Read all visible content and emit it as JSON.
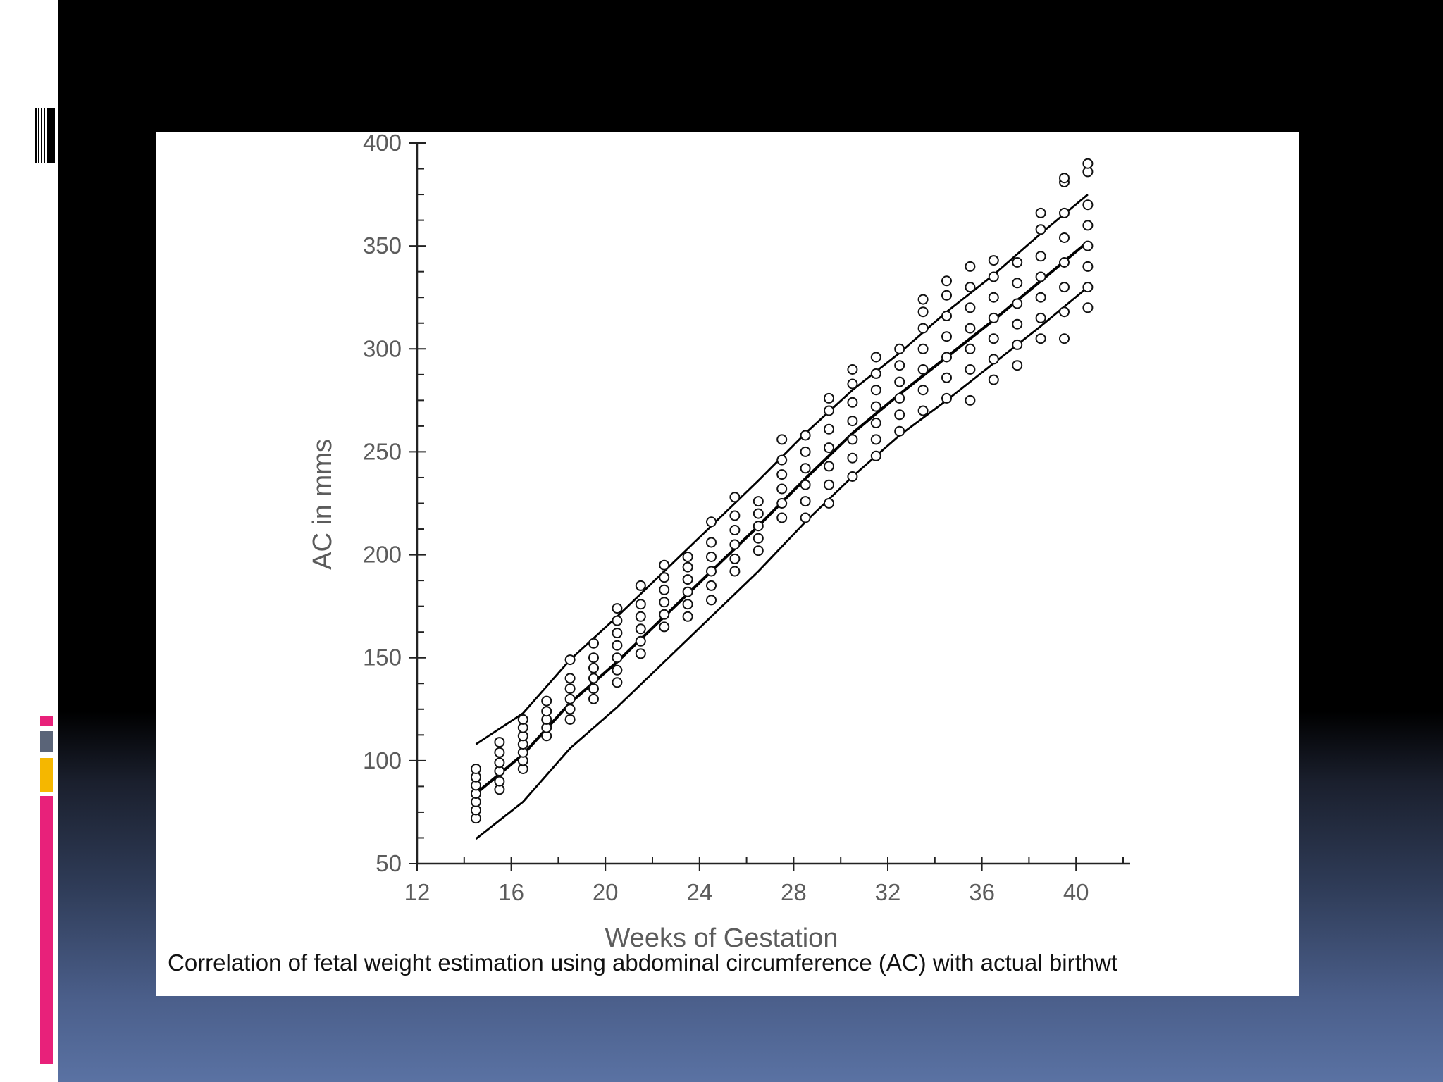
{
  "caption": "Correlation of fetal weight estimation using abdominal circumference (AC) with actual birthwt",
  "colors": {
    "slide_top": "#000000",
    "slide_bottom": "#5a72a3",
    "accent_pink": "#e8217a",
    "accent_slate": "#5a6478",
    "accent_amber": "#f5b700",
    "ink": "#000000"
  },
  "chart_data": {
    "type": "scatter",
    "title": "",
    "xlabel": "Weeks of Gestation",
    "ylabel": "AC in mms",
    "xlim": [
      12,
      42
    ],
    "ylim": [
      50,
      400
    ],
    "xticks": [
      "12",
      "16",
      "20",
      "24",
      "28",
      "32",
      "36",
      "40"
    ],
    "yticks": [
      "50",
      "100",
      "150",
      "200",
      "250",
      "300",
      "350",
      "400"
    ],
    "grid": false,
    "legend": "none",
    "series": [
      {
        "kind": "points",
        "marker": "open-circle",
        "points": [
          [
            14.5,
            72
          ],
          [
            14.5,
            76
          ],
          [
            14.5,
            80
          ],
          [
            14.5,
            84
          ],
          [
            14.5,
            88
          ],
          [
            14.5,
            92
          ],
          [
            14.5,
            96
          ],
          [
            15.5,
            86
          ],
          [
            15.5,
            90
          ],
          [
            15.5,
            95
          ],
          [
            15.5,
            99
          ],
          [
            15.5,
            104
          ],
          [
            15.5,
            109
          ],
          [
            16.5,
            96
          ],
          [
            16.5,
            100
          ],
          [
            16.5,
            104
          ],
          [
            16.5,
            108
          ],
          [
            16.5,
            112
          ],
          [
            16.5,
            116
          ],
          [
            16.5,
            120
          ],
          [
            17.5,
            112
          ],
          [
            17.5,
            116
          ],
          [
            17.5,
            120
          ],
          [
            17.5,
            124
          ],
          [
            17.5,
            129
          ],
          [
            18.5,
            120
          ],
          [
            18.5,
            125
          ],
          [
            18.5,
            130
          ],
          [
            18.5,
            135
          ],
          [
            18.5,
            140
          ],
          [
            18.5,
            149
          ],
          [
            19.5,
            130
          ],
          [
            19.5,
            135
          ],
          [
            19.5,
            140
          ],
          [
            19.5,
            145
          ],
          [
            19.5,
            150
          ],
          [
            19.5,
            157
          ],
          [
            20.5,
            138
          ],
          [
            20.5,
            144
          ],
          [
            20.5,
            150
          ],
          [
            20.5,
            156
          ],
          [
            20.5,
            162
          ],
          [
            20.5,
            168
          ],
          [
            20.5,
            174
          ],
          [
            21.5,
            152
          ],
          [
            21.5,
            158
          ],
          [
            21.5,
            164
          ],
          [
            21.5,
            170
          ],
          [
            21.5,
            176
          ],
          [
            21.5,
            185
          ],
          [
            22.5,
            165
          ],
          [
            22.5,
            171
          ],
          [
            22.5,
            177
          ],
          [
            22.5,
            183
          ],
          [
            22.5,
            189
          ],
          [
            22.5,
            195
          ],
          [
            23.5,
            170
          ],
          [
            23.5,
            176
          ],
          [
            23.5,
            182
          ],
          [
            23.5,
            188
          ],
          [
            23.5,
            194
          ],
          [
            23.5,
            199
          ],
          [
            24.5,
            178
          ],
          [
            24.5,
            185
          ],
          [
            24.5,
            192
          ],
          [
            24.5,
            199
          ],
          [
            24.5,
            206
          ],
          [
            24.5,
            216
          ],
          [
            25.5,
            192
          ],
          [
            25.5,
            198
          ],
          [
            25.5,
            205
          ],
          [
            25.5,
            212
          ],
          [
            25.5,
            219
          ],
          [
            25.5,
            228
          ],
          [
            26.5,
            202
          ],
          [
            26.5,
            208
          ],
          [
            26.5,
            214
          ],
          [
            26.5,
            220
          ],
          [
            26.5,
            226
          ],
          [
            27.5,
            218
          ],
          [
            27.5,
            225
          ],
          [
            27.5,
            232
          ],
          [
            27.5,
            239
          ],
          [
            27.5,
            246
          ],
          [
            27.5,
            256
          ],
          [
            28.5,
            218
          ],
          [
            28.5,
            226
          ],
          [
            28.5,
            234
          ],
          [
            28.5,
            242
          ],
          [
            28.5,
            250
          ],
          [
            28.5,
            258
          ],
          [
            29.5,
            225
          ],
          [
            29.5,
            234
          ],
          [
            29.5,
            243
          ],
          [
            29.5,
            252
          ],
          [
            29.5,
            261
          ],
          [
            29.5,
            270
          ],
          [
            29.5,
            276
          ],
          [
            30.5,
            238
          ],
          [
            30.5,
            247
          ],
          [
            30.5,
            256
          ],
          [
            30.5,
            265
          ],
          [
            30.5,
            274
          ],
          [
            30.5,
            283
          ],
          [
            30.5,
            290
          ],
          [
            31.5,
            248
          ],
          [
            31.5,
            256
          ],
          [
            31.5,
            264
          ],
          [
            31.5,
            272
          ],
          [
            31.5,
            280
          ],
          [
            31.5,
            288
          ],
          [
            31.5,
            296
          ],
          [
            32.5,
            260
          ],
          [
            32.5,
            268
          ],
          [
            32.5,
            276
          ],
          [
            32.5,
            284
          ],
          [
            32.5,
            292
          ],
          [
            32.5,
            300
          ],
          [
            33.5,
            270
          ],
          [
            33.5,
            280
          ],
          [
            33.5,
            290
          ],
          [
            33.5,
            300
          ],
          [
            33.5,
            310
          ],
          [
            33.5,
            318
          ],
          [
            33.5,
            324
          ],
          [
            34.5,
            276
          ],
          [
            34.5,
            286
          ],
          [
            34.5,
            296
          ],
          [
            34.5,
            306
          ],
          [
            34.5,
            316
          ],
          [
            34.5,
            326
          ],
          [
            34.5,
            333
          ],
          [
            35.5,
            275
          ],
          [
            35.5,
            290
          ],
          [
            35.5,
            300
          ],
          [
            35.5,
            310
          ],
          [
            35.5,
            320
          ],
          [
            35.5,
            330
          ],
          [
            35.5,
            340
          ],
          [
            36.5,
            285
          ],
          [
            36.5,
            295
          ],
          [
            36.5,
            305
          ],
          [
            36.5,
            315
          ],
          [
            36.5,
            325
          ],
          [
            36.5,
            335
          ],
          [
            36.5,
            343
          ],
          [
            37.5,
            292
          ],
          [
            37.5,
            302
          ],
          [
            37.5,
            312
          ],
          [
            37.5,
            322
          ],
          [
            37.5,
            332
          ],
          [
            37.5,
            342
          ],
          [
            38.5,
            305
          ],
          [
            38.5,
            315
          ],
          [
            38.5,
            325
          ],
          [
            38.5,
            335
          ],
          [
            38.5,
            345
          ],
          [
            38.5,
            358
          ],
          [
            38.5,
            366
          ],
          [
            39.5,
            305
          ],
          [
            39.5,
            318
          ],
          [
            39.5,
            330
          ],
          [
            39.5,
            342
          ],
          [
            39.5,
            354
          ],
          [
            39.5,
            366
          ],
          [
            39.5,
            381
          ],
          [
            39.5,
            383
          ],
          [
            40.5,
            320
          ],
          [
            40.5,
            330
          ],
          [
            40.5,
            340
          ],
          [
            40.5,
            350
          ],
          [
            40.5,
            360
          ],
          [
            40.5,
            370
          ],
          [
            40.5,
            386
          ],
          [
            40.5,
            390
          ]
        ]
      },
      {
        "kind": "line",
        "role": "upper band",
        "points": [
          [
            14.5,
            108
          ],
          [
            16.5,
            123
          ],
          [
            18.5,
            149
          ],
          [
            20.5,
            170
          ],
          [
            22.5,
            192
          ],
          [
            24.5,
            214
          ],
          [
            26.5,
            236
          ],
          [
            28.5,
            259
          ],
          [
            30.5,
            280
          ],
          [
            32.5,
            298
          ],
          [
            34.5,
            318
          ],
          [
            36.5,
            336
          ],
          [
            38.5,
            356
          ],
          [
            40.5,
            375
          ]
        ]
      },
      {
        "kind": "line",
        "role": "mean",
        "points": [
          [
            14.5,
            84
          ],
          [
            16.5,
            103
          ],
          [
            18.5,
            128
          ],
          [
            20.5,
            148
          ],
          [
            22.5,
            170
          ],
          [
            24.5,
            192
          ],
          [
            26.5,
            214
          ],
          [
            28.5,
            237
          ],
          [
            30.5,
            259
          ],
          [
            32.5,
            278
          ],
          [
            34.5,
            296
          ],
          [
            36.5,
            314
          ],
          [
            38.5,
            333
          ],
          [
            40.5,
            352
          ]
        ]
      },
      {
        "kind": "line",
        "role": "lower band",
        "points": [
          [
            14.5,
            62
          ],
          [
            16.5,
            80
          ],
          [
            18.5,
            106
          ],
          [
            20.5,
            126
          ],
          [
            22.5,
            148
          ],
          [
            24.5,
            170
          ],
          [
            26.5,
            192
          ],
          [
            28.5,
            216
          ],
          [
            30.5,
            238
          ],
          [
            32.5,
            258
          ],
          [
            34.5,
            275
          ],
          [
            36.5,
            293
          ],
          [
            38.5,
            311
          ],
          [
            40.5,
            330
          ]
        ]
      }
    ]
  }
}
